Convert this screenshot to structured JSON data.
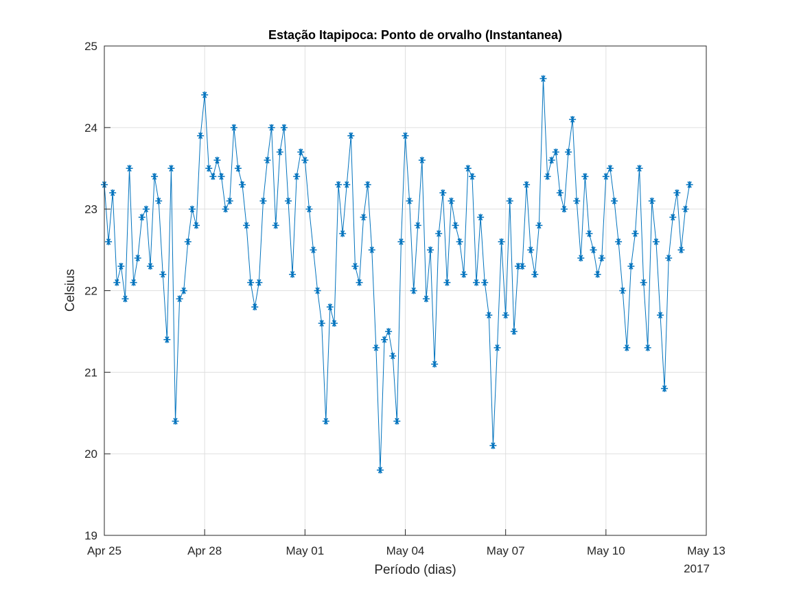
{
  "chart_data": {
    "type": "line",
    "title": "Estação Itapipoca: Ponto de orvalho (Instantanea)",
    "x_label": "Período (dias)",
    "x_secondary_label": "2017",
    "y_label": "Celsius",
    "xlim": [
      0,
      18
    ],
    "xticks": [
      {
        "value": 0,
        "label": "Apr 25"
      },
      {
        "value": 3,
        "label": "Apr 28"
      },
      {
        "value": 6,
        "label": "May 01"
      },
      {
        "value": 9,
        "label": "May 04"
      },
      {
        "value": 12,
        "label": "May 07"
      },
      {
        "value": 15,
        "label": "May 10"
      },
      {
        "value": 18,
        "label": "May 13"
      }
    ],
    "ylim": [
      19,
      25
    ],
    "yticks": [
      19,
      20,
      21,
      22,
      23,
      24,
      25
    ],
    "grid": true,
    "marker": "asterisk",
    "x": [
      0,
      0.125,
      0.25,
      0.375,
      0.5,
      0.625,
      0.75,
      0.875,
      1,
      1.125,
      1.25,
      1.375,
      1.5,
      1.625,
      1.75,
      1.875,
      2,
      2.125,
      2.25,
      2.375,
      2.5,
      2.625,
      2.75,
      2.875,
      3,
      3.125,
      3.25,
      3.375,
      3.5,
      3.625,
      3.75,
      3.875,
      4,
      4.125,
      4.25,
      4.375,
      4.5,
      4.625,
      4.75,
      4.875,
      5,
      5.125,
      5.25,
      5.375,
      5.5,
      5.625,
      5.75,
      5.875,
      6,
      6.125,
      6.25,
      6.375,
      6.5,
      6.625,
      6.75,
      6.875,
      7,
      7.125,
      7.25,
      7.375,
      7.5,
      7.625,
      7.75,
      7.875,
      8,
      8.125,
      8.25,
      8.375,
      8.5,
      8.625,
      8.75,
      8.875,
      9,
      9.125,
      9.25,
      9.375,
      9.5,
      9.625,
      9.75,
      9.875,
      10,
      10.125,
      10.25,
      10.375,
      10.5,
      10.625,
      10.75,
      10.875,
      11,
      11.125,
      11.25,
      11.375,
      11.5,
      11.625,
      11.75,
      11.875,
      12,
      12.125,
      12.25,
      12.375,
      12.5,
      12.625,
      12.75,
      12.875,
      13,
      13.125,
      13.25,
      13.375,
      13.5,
      13.625,
      13.75,
      13.875,
      14,
      14.125,
      14.25,
      14.375,
      14.5,
      14.625,
      14.75,
      14.875,
      15,
      15.125,
      15.25,
      15.375,
      15.5,
      15.625,
      15.75,
      15.875,
      16,
      16.125,
      16.25,
      16.375,
      16.5,
      16.625,
      16.75,
      16.875,
      17,
      17.125,
      17.25,
      17.375,
      17.5
    ],
    "series": [
      {
        "color": "#0072bd",
        "values": [
          23.3,
          22.6,
          23.2,
          22.1,
          22.3,
          21.9,
          23.5,
          22.1,
          22.4,
          22.9,
          23.0,
          22.3,
          23.4,
          23.1,
          22.2,
          21.4,
          23.5,
          20.4,
          21.9,
          22.0,
          22.6,
          23.0,
          22.8,
          23.9,
          24.4,
          23.5,
          23.4,
          23.6,
          23.4,
          23.0,
          23.1,
          24.0,
          23.5,
          23.3,
          22.8,
          22.1,
          21.8,
          22.1,
          23.1,
          23.6,
          24.0,
          22.8,
          23.7,
          24.0,
          23.1,
          22.2,
          23.4,
          23.7,
          23.6,
          23.0,
          22.5,
          22.0,
          21.6,
          20.4,
          21.8,
          21.6,
          23.3,
          22.7,
          23.3,
          23.9,
          22.3,
          22.1,
          22.9,
          23.3,
          22.5,
          21.3,
          19.8,
          21.4,
          21.5,
          21.2,
          20.4,
          22.6,
          23.9,
          23.1,
          22.0,
          22.8,
          23.6,
          21.9,
          22.5,
          21.1,
          22.7,
          23.2,
          22.1,
          23.1,
          22.8,
          22.6,
          22.2,
          23.5,
          23.4,
          22.1,
          22.9,
          22.1,
          21.7,
          20.1,
          21.3,
          22.6,
          21.7,
          23.1,
          21.5,
          22.3,
          22.3,
          23.3,
          22.5,
          22.2,
          22.8,
          24.6,
          23.4,
          23.6,
          23.7,
          23.2,
          23.0,
          23.7,
          24.1,
          23.1,
          22.4,
          23.4,
          22.7,
          22.5,
          22.2,
          22.4,
          23.4,
          23.5,
          23.1,
          22.6,
          22.0,
          21.3,
          22.3,
          22.7,
          23.5,
          22.1,
          21.3,
          23.1,
          22.6,
          21.7,
          20.8,
          22.4,
          22.9,
          23.2,
          22.5,
          23.0,
          23.3
        ]
      }
    ]
  }
}
